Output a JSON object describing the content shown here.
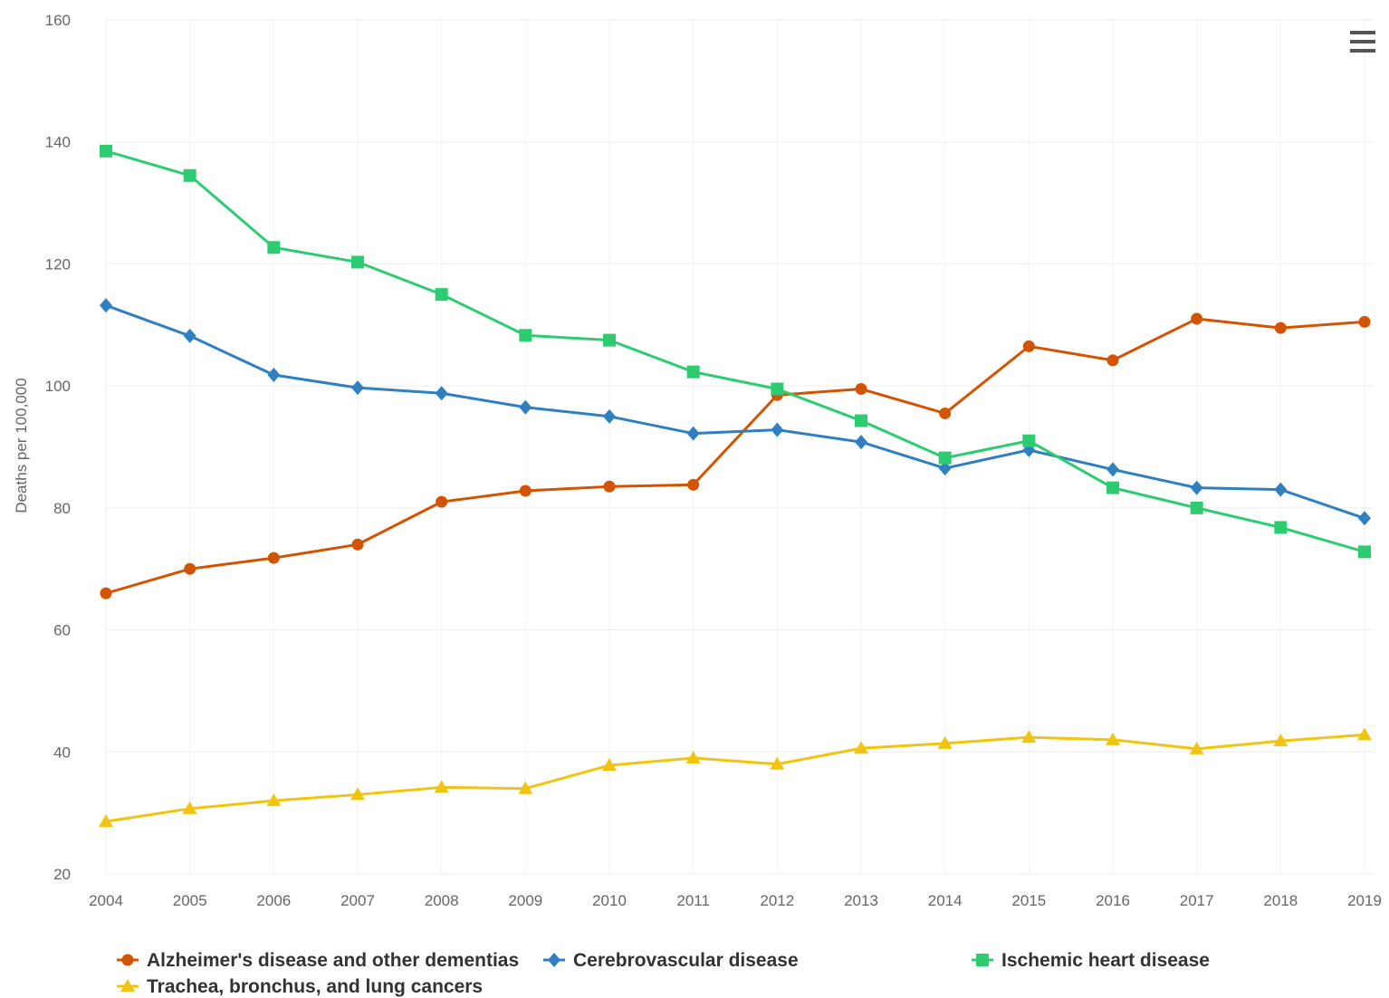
{
  "chart_data": {
    "type": "line",
    "title": "",
    "xlabel": "",
    "ylabel": "Deaths per 100,000",
    "ylim": [
      20,
      160
    ],
    "yticks": [
      20,
      40,
      60,
      80,
      100,
      120,
      140,
      160
    ],
    "categories": [
      "2004",
      "2005",
      "2006",
      "2007",
      "2008",
      "2009",
      "2010",
      "2011",
      "2012",
      "2013",
      "2014",
      "2015",
      "2016",
      "2017",
      "2018",
      "2019"
    ],
    "grid": true,
    "legend_position": "bottom",
    "series": [
      {
        "name": "Alzheimer's disease and other dementias",
        "color": "#d35400",
        "marker": "circle",
        "values": [
          66,
          70,
          71.8,
          74,
          81,
          82.8,
          83.5,
          83.8,
          98.5,
          99.5,
          95.5,
          106.5,
          104.2,
          111,
          109.5,
          110.5
        ]
      },
      {
        "name": "Cerebrovascular disease",
        "color": "#2f7fc1",
        "marker": "diamond",
        "values": [
          113.2,
          108.2,
          101.8,
          99.7,
          98.8,
          96.5,
          95,
          92.2,
          92.8,
          90.8,
          86.5,
          89.5,
          86.3,
          83.3,
          83,
          78.3
        ]
      },
      {
        "name": "Ischemic heart disease",
        "color": "#2ecc71",
        "marker": "square",
        "values": [
          138.5,
          134.5,
          122.7,
          120.3,
          115,
          108.3,
          107.5,
          102.3,
          99.5,
          94.3,
          88.2,
          91,
          83.3,
          80,
          76.8,
          72.8
        ]
      },
      {
        "name": "Trachea, bronchus, and lung cancers",
        "color": "#f1c40f",
        "marker": "triangle",
        "values": [
          28.6,
          30.7,
          32,
          33,
          34.2,
          34,
          37.8,
          39,
          38,
          40.6,
          41.4,
          42.4,
          42,
          40.5,
          41.8,
          42.8
        ]
      }
    ]
  },
  "menu": {
    "icon": "hamburger-menu-icon"
  }
}
